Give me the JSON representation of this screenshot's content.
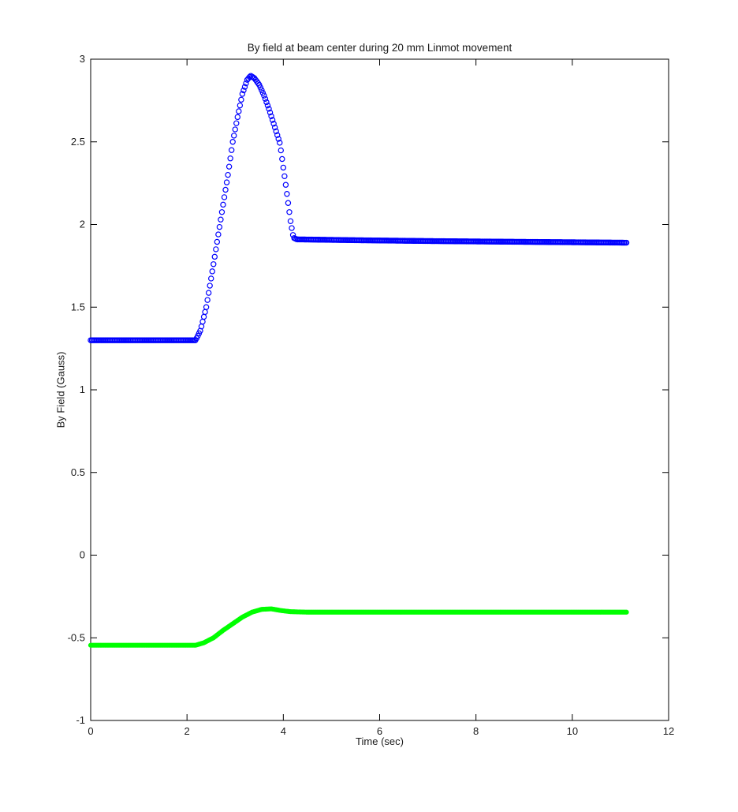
{
  "figure": {
    "background": "#ffffff"
  },
  "chart_data": {
    "type": "scatter",
    "title": "By field at beam center during 20 mm Linmot movement",
    "xlabel": "Time (sec)",
    "ylabel": "By Field (Gauss)",
    "xlim": [
      0,
      12
    ],
    "ylim": [
      -1,
      3
    ],
    "xticks": {
      "values": [
        0,
        2,
        4,
        6,
        8,
        10,
        12
      ],
      "labels": [
        "0",
        "2",
        "4",
        "6",
        "8",
        "10",
        "12"
      ]
    },
    "yticks": {
      "values": [
        -1,
        -0.5,
        0,
        0.5,
        1,
        1.5,
        2,
        2.5,
        3
      ],
      "labels": [
        "-1",
        "-0.5",
        "0",
        "0.5",
        "1",
        "1.5",
        "2",
        "2.5",
        "3"
      ]
    },
    "grid": false,
    "legend": null,
    "box": true,
    "axis_color": "#000000",
    "sample_dt": 0.025,
    "series": [
      {
        "name": "blue-open-circles",
        "marker": "open-circle",
        "color": "#0000ff",
        "t_start": 0,
        "t_end": 11.13,
        "breakpoints": [
          [
            0,
            1.3
          ],
          [
            2.18,
            1.3
          ],
          [
            2.28,
            1.36
          ],
          [
            2.4,
            1.5
          ],
          [
            2.55,
            1.76
          ],
          [
            2.7,
            2.03
          ],
          [
            2.85,
            2.3
          ],
          [
            2.95,
            2.5
          ],
          [
            3.05,
            2.65
          ],
          [
            3.15,
            2.79
          ],
          [
            3.25,
            2.875
          ],
          [
            3.32,
            2.9
          ],
          [
            3.4,
            2.885
          ],
          [
            3.5,
            2.845
          ],
          [
            3.6,
            2.78
          ],
          [
            3.7,
            2.7
          ],
          [
            3.8,
            2.61
          ],
          [
            3.93,
            2.49
          ],
          [
            4.05,
            2.24
          ],
          [
            4.15,
            2.02
          ],
          [
            4.21,
            1.92
          ],
          [
            4.28,
            1.91
          ],
          [
            5.5,
            1.905
          ],
          [
            7.0,
            1.9
          ],
          [
            9.0,
            1.895
          ],
          [
            11.13,
            1.89
          ]
        ]
      },
      {
        "name": "green-dots",
        "marker": "filled-dot",
        "color": "#00ff00",
        "t_start": 0,
        "t_end": 11.13,
        "breakpoints": [
          [
            0,
            -0.545
          ],
          [
            2.18,
            -0.545
          ],
          [
            2.35,
            -0.53
          ],
          [
            2.55,
            -0.5
          ],
          [
            2.75,
            -0.455
          ],
          [
            2.95,
            -0.415
          ],
          [
            3.15,
            -0.375
          ],
          [
            3.35,
            -0.345
          ],
          [
            3.55,
            -0.328
          ],
          [
            3.75,
            -0.325
          ],
          [
            3.95,
            -0.335
          ],
          [
            4.15,
            -0.342
          ],
          [
            4.5,
            -0.345
          ],
          [
            11.13,
            -0.345
          ]
        ]
      }
    ]
  }
}
